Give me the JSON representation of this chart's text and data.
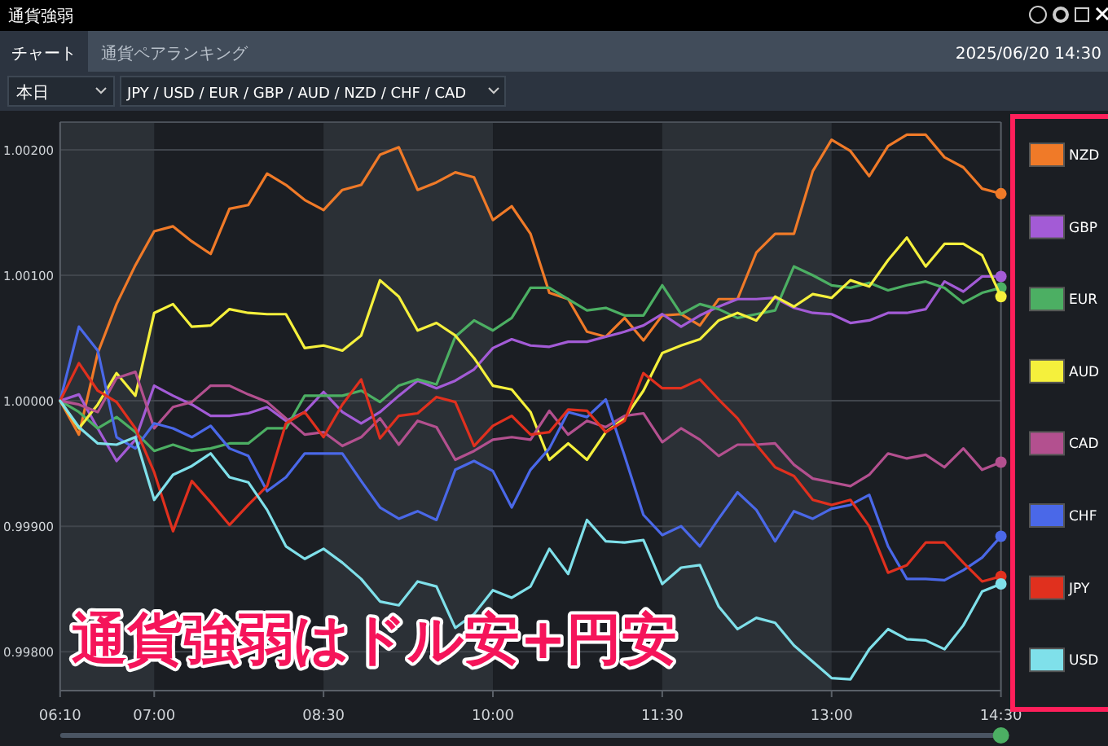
{
  "chart_data": {
    "type": "line",
    "title": "通貨強弱",
    "annotations": [
      "チャート",
      "通貨ペアランキング",
      "2025/06/20 14:30",
      "本日",
      "JPY / USD / EUR / GBP / AUD / NZD / CHF / CAD",
      "通貨強弱はドル安+円安"
    ],
    "x": [
      6.1667,
      6.3333,
      6.5,
      6.6667,
      6.8333,
      7,
      7.1667,
      7.3333,
      7.5,
      7.6667,
      7.8333,
      8,
      8.1667,
      8.3333,
      8.5,
      8.6667,
      8.8333,
      9,
      9.1667,
      9.3333,
      9.5,
      9.6667,
      9.8333,
      10,
      10.1667,
      10.3333,
      10.5,
      10.6667,
      10.8333,
      11,
      11.1667,
      11.3333,
      11.5,
      11.6667,
      11.8333,
      12,
      12.1667,
      12.3333,
      12.5,
      12.6667,
      12.8333,
      13,
      13.1667,
      13.3333,
      13.5,
      13.6667,
      13.8333,
      14,
      14.1667,
      14.3333,
      14.5
    ],
    "series": [
      {
        "name": "NZD",
        "color": "#f07a28",
        "values": [
          1.0,
          0.99973,
          1.00038,
          1.00077,
          1.00108,
          1.00135,
          1.00139,
          1.00127,
          1.00117,
          1.00153,
          1.00156,
          1.00181,
          1.00172,
          1.0016,
          1.00152,
          1.00168,
          1.00172,
          1.00196,
          1.00202,
          1.00168,
          1.00174,
          1.00182,
          1.00178,
          1.00144,
          1.00155,
          1.00133,
          1.00086,
          1.00081,
          1.00055,
          1.00051,
          1.00066,
          1.00048,
          1.00068,
          1.00069,
          1.0006,
          1.00081,
          1.00081,
          1.00118,
          1.00133,
          1.00133,
          1.00183,
          1.00208,
          1.00199,
          1.00179,
          1.00203,
          1.00212,
          1.00212,
          1.00194,
          1.00186,
          1.00169,
          1.00165
        ]
      },
      {
        "name": "GBP",
        "color": "#a35bd6",
        "values": [
          1.0,
          1.00005,
          0.99978,
          0.99952,
          0.99969,
          1.00012,
          1.00004,
          0.99997,
          0.99988,
          0.99988,
          0.9999,
          0.99995,
          0.99984,
          0.99991,
          1.00007,
          0.99991,
          0.99982,
          0.99991,
          1.00004,
          1.00016,
          1.0001,
          1.00016,
          1.00025,
          1.00042,
          1.00049,
          1.00044,
          1.00043,
          1.00047,
          1.00047,
          1.00051,
          1.00055,
          1.0006,
          1.00069,
          1.00059,
          1.00068,
          1.00075,
          1.00081,
          1.00081,
          1.00082,
          1.00074,
          1.0007,
          1.00069,
          1.00062,
          1.00064,
          1.0007,
          1.0007,
          1.00073,
          1.00095,
          1.00087,
          1.00099,
          1.00099
        ]
      },
      {
        "name": "EUR",
        "color": "#4caf63",
        "values": [
          1.0,
          0.99991,
          0.99978,
          0.99987,
          0.99975,
          0.9996,
          0.99965,
          0.9996,
          0.99962,
          0.99966,
          0.99966,
          0.99978,
          0.99978,
          1.00004,
          1.00004,
          1.00004,
          1.00008,
          0.99999,
          1.00012,
          1.00017,
          1.00013,
          1.00051,
          1.00064,
          1.00056,
          1.00066,
          1.0009,
          1.0009,
          1.00081,
          1.00072,
          1.00074,
          1.00068,
          1.00068,
          1.00092,
          1.00069,
          1.00077,
          1.00073,
          1.00066,
          1.00069,
          1.00072,
          1.00107,
          1.001,
          1.00092,
          1.0009,
          1.00094,
          1.00088,
          1.00092,
          1.00095,
          1.0009,
          1.00078,
          1.00086,
          1.0009
        ]
      },
      {
        "name": "AUD",
        "color": "#f5f03c",
        "values": [
          1.0,
          0.99978,
          0.99997,
          1.00022,
          1.00004,
          1.0007,
          1.00077,
          1.00059,
          1.0006,
          1.00073,
          1.0007,
          1.00069,
          1.00069,
          1.00042,
          1.00044,
          1.0004,
          1.00052,
          1.00096,
          1.00083,
          1.00056,
          1.00062,
          1.00052,
          1.00034,
          1.00012,
          1.00009,
          0.99991,
          0.99953,
          0.99966,
          0.99953,
          0.99975,
          0.99986,
          1.00008,
          1.00038,
          1.00044,
          1.00049,
          1.00064,
          1.0007,
          1.00064,
          1.00083,
          1.00075,
          1.00085,
          1.00082,
          1.00096,
          1.00091,
          1.00112,
          1.0013,
          1.00107,
          1.00125,
          1.00125,
          1.00116,
          1.00083
        ]
      },
      {
        "name": "CAD",
        "color": "#b3508f",
        "values": [
          1.0,
          0.99997,
          0.99991,
          1.00018,
          1.00023,
          0.99978,
          0.99995,
          0.99999,
          1.00012,
          1.00012,
          1.00005,
          0.99999,
          0.99986,
          0.99973,
          0.99975,
          0.99964,
          0.99971,
          0.99986,
          0.99965,
          0.99984,
          0.99979,
          0.99953,
          0.9996,
          0.99969,
          0.99971,
          0.99969,
          0.99992,
          0.99973,
          0.99984,
          0.99979,
          0.99988,
          0.9999,
          0.99967,
          0.99978,
          0.99969,
          0.99956,
          0.99965,
          0.99965,
          0.99966,
          0.99949,
          0.99938,
          0.99935,
          0.99932,
          0.99941,
          0.99958,
          0.99954,
          0.99957,
          0.99947,
          0.99962,
          0.99945,
          0.99951
        ]
      },
      {
        "name": "CHF",
        "color": "#4a68e8",
        "values": [
          1.0,
          1.00059,
          1.0004,
          0.99971,
          0.99962,
          0.99982,
          0.99978,
          0.99971,
          0.9998,
          0.99962,
          0.99956,
          0.99928,
          0.99939,
          0.99958,
          0.99958,
          0.99958,
          0.99936,
          0.99915,
          0.99906,
          0.99912,
          0.99905,
          0.99945,
          0.99952,
          0.99944,
          0.99915,
          0.99945,
          0.99962,
          0.99991,
          0.99987,
          1.00001,
          0.99956,
          0.99909,
          0.99893,
          0.999,
          0.99884,
          0.99906,
          0.99927,
          0.99913,
          0.99888,
          0.99912,
          0.99906,
          0.99914,
          0.99917,
          0.99925,
          0.99884,
          0.99858,
          0.99858,
          0.99857,
          0.99865,
          0.99875,
          0.99892
        ]
      },
      {
        "name": "JPY",
        "color": "#e0301e",
        "values": [
          1.0,
          1.0003,
          1.00008,
          0.99999,
          0.99978,
          0.99943,
          0.99896,
          0.99936,
          0.99919,
          0.99901,
          0.99917,
          0.99932,
          0.99982,
          0.99991,
          0.99971,
          0.99997,
          1.00017,
          0.9997,
          0.99988,
          0.9999,
          1.00003,
          0.99999,
          0.99964,
          0.9998,
          0.99988,
          0.99973,
          0.99975,
          0.99993,
          0.99992,
          0.99975,
          0.99984,
          1.00022,
          1.0001,
          1.0001,
          1.00017,
          1.00001,
          0.99986,
          0.99965,
          0.99947,
          0.9994,
          0.99921,
          0.99917,
          0.99921,
          0.999,
          0.99863,
          0.99869,
          0.99887,
          0.99887,
          0.99871,
          0.99856,
          0.9986
        ]
      },
      {
        "name": "USD",
        "color": "#7fe0ea",
        "values": [
          1.0,
          0.99979,
          0.99966,
          0.99965,
          0.99971,
          0.99921,
          0.99941,
          0.99948,
          0.99958,
          0.99939,
          0.99935,
          0.99913,
          0.99884,
          0.99874,
          0.99882,
          0.99871,
          0.99858,
          0.9984,
          0.99837,
          0.99856,
          0.99852,
          0.99819,
          0.9983,
          0.99849,
          0.99843,
          0.99852,
          0.99882,
          0.99862,
          0.99905,
          0.99888,
          0.99887,
          0.99889,
          0.99854,
          0.99867,
          0.99869,
          0.99836,
          0.99818,
          0.99827,
          0.99823,
          0.99805,
          0.99792,
          0.99779,
          0.99778,
          0.99802,
          0.99818,
          0.9981,
          0.99809,
          0.99802,
          0.99821,
          0.99848,
          0.99854
        ]
      }
    ],
    "xlim": [
      6.1667,
      14.5
    ],
    "xticks": [
      {
        "value": 6.1667,
        "label": "06:10"
      },
      {
        "value": 7,
        "label": "07:00"
      },
      {
        "value": 8.5,
        "label": "08:30"
      },
      {
        "value": 10,
        "label": "10:00"
      },
      {
        "value": 11.5,
        "label": "11:30"
      },
      {
        "value": 13,
        "label": "13:00"
      },
      {
        "value": 14.5,
        "label": "14:30"
      }
    ],
    "ylim": [
      0.99769,
      1.00222
    ],
    "yticks": [
      {
        "value": 0.998,
        "label": "0.99800"
      },
      {
        "value": 0.999,
        "label": "0.99900"
      },
      {
        "value": 1.0,
        "label": "1.00000"
      },
      {
        "value": 1.001,
        "label": "1.00100"
      },
      {
        "value": 1.002,
        "label": "1.00200"
      }
    ],
    "bands": [
      {
        "axis": "x",
        "from": 6.1667,
        "to": 7,
        "color": "#2b3036"
      },
      {
        "axis": "x",
        "from": 8.5,
        "to": 10,
        "color": "#2b3036"
      },
      {
        "axis": "x",
        "from": 11.5,
        "to": 13,
        "color": "#2b3036"
      }
    ],
    "grid": "y",
    "legend": "right"
  }
}
